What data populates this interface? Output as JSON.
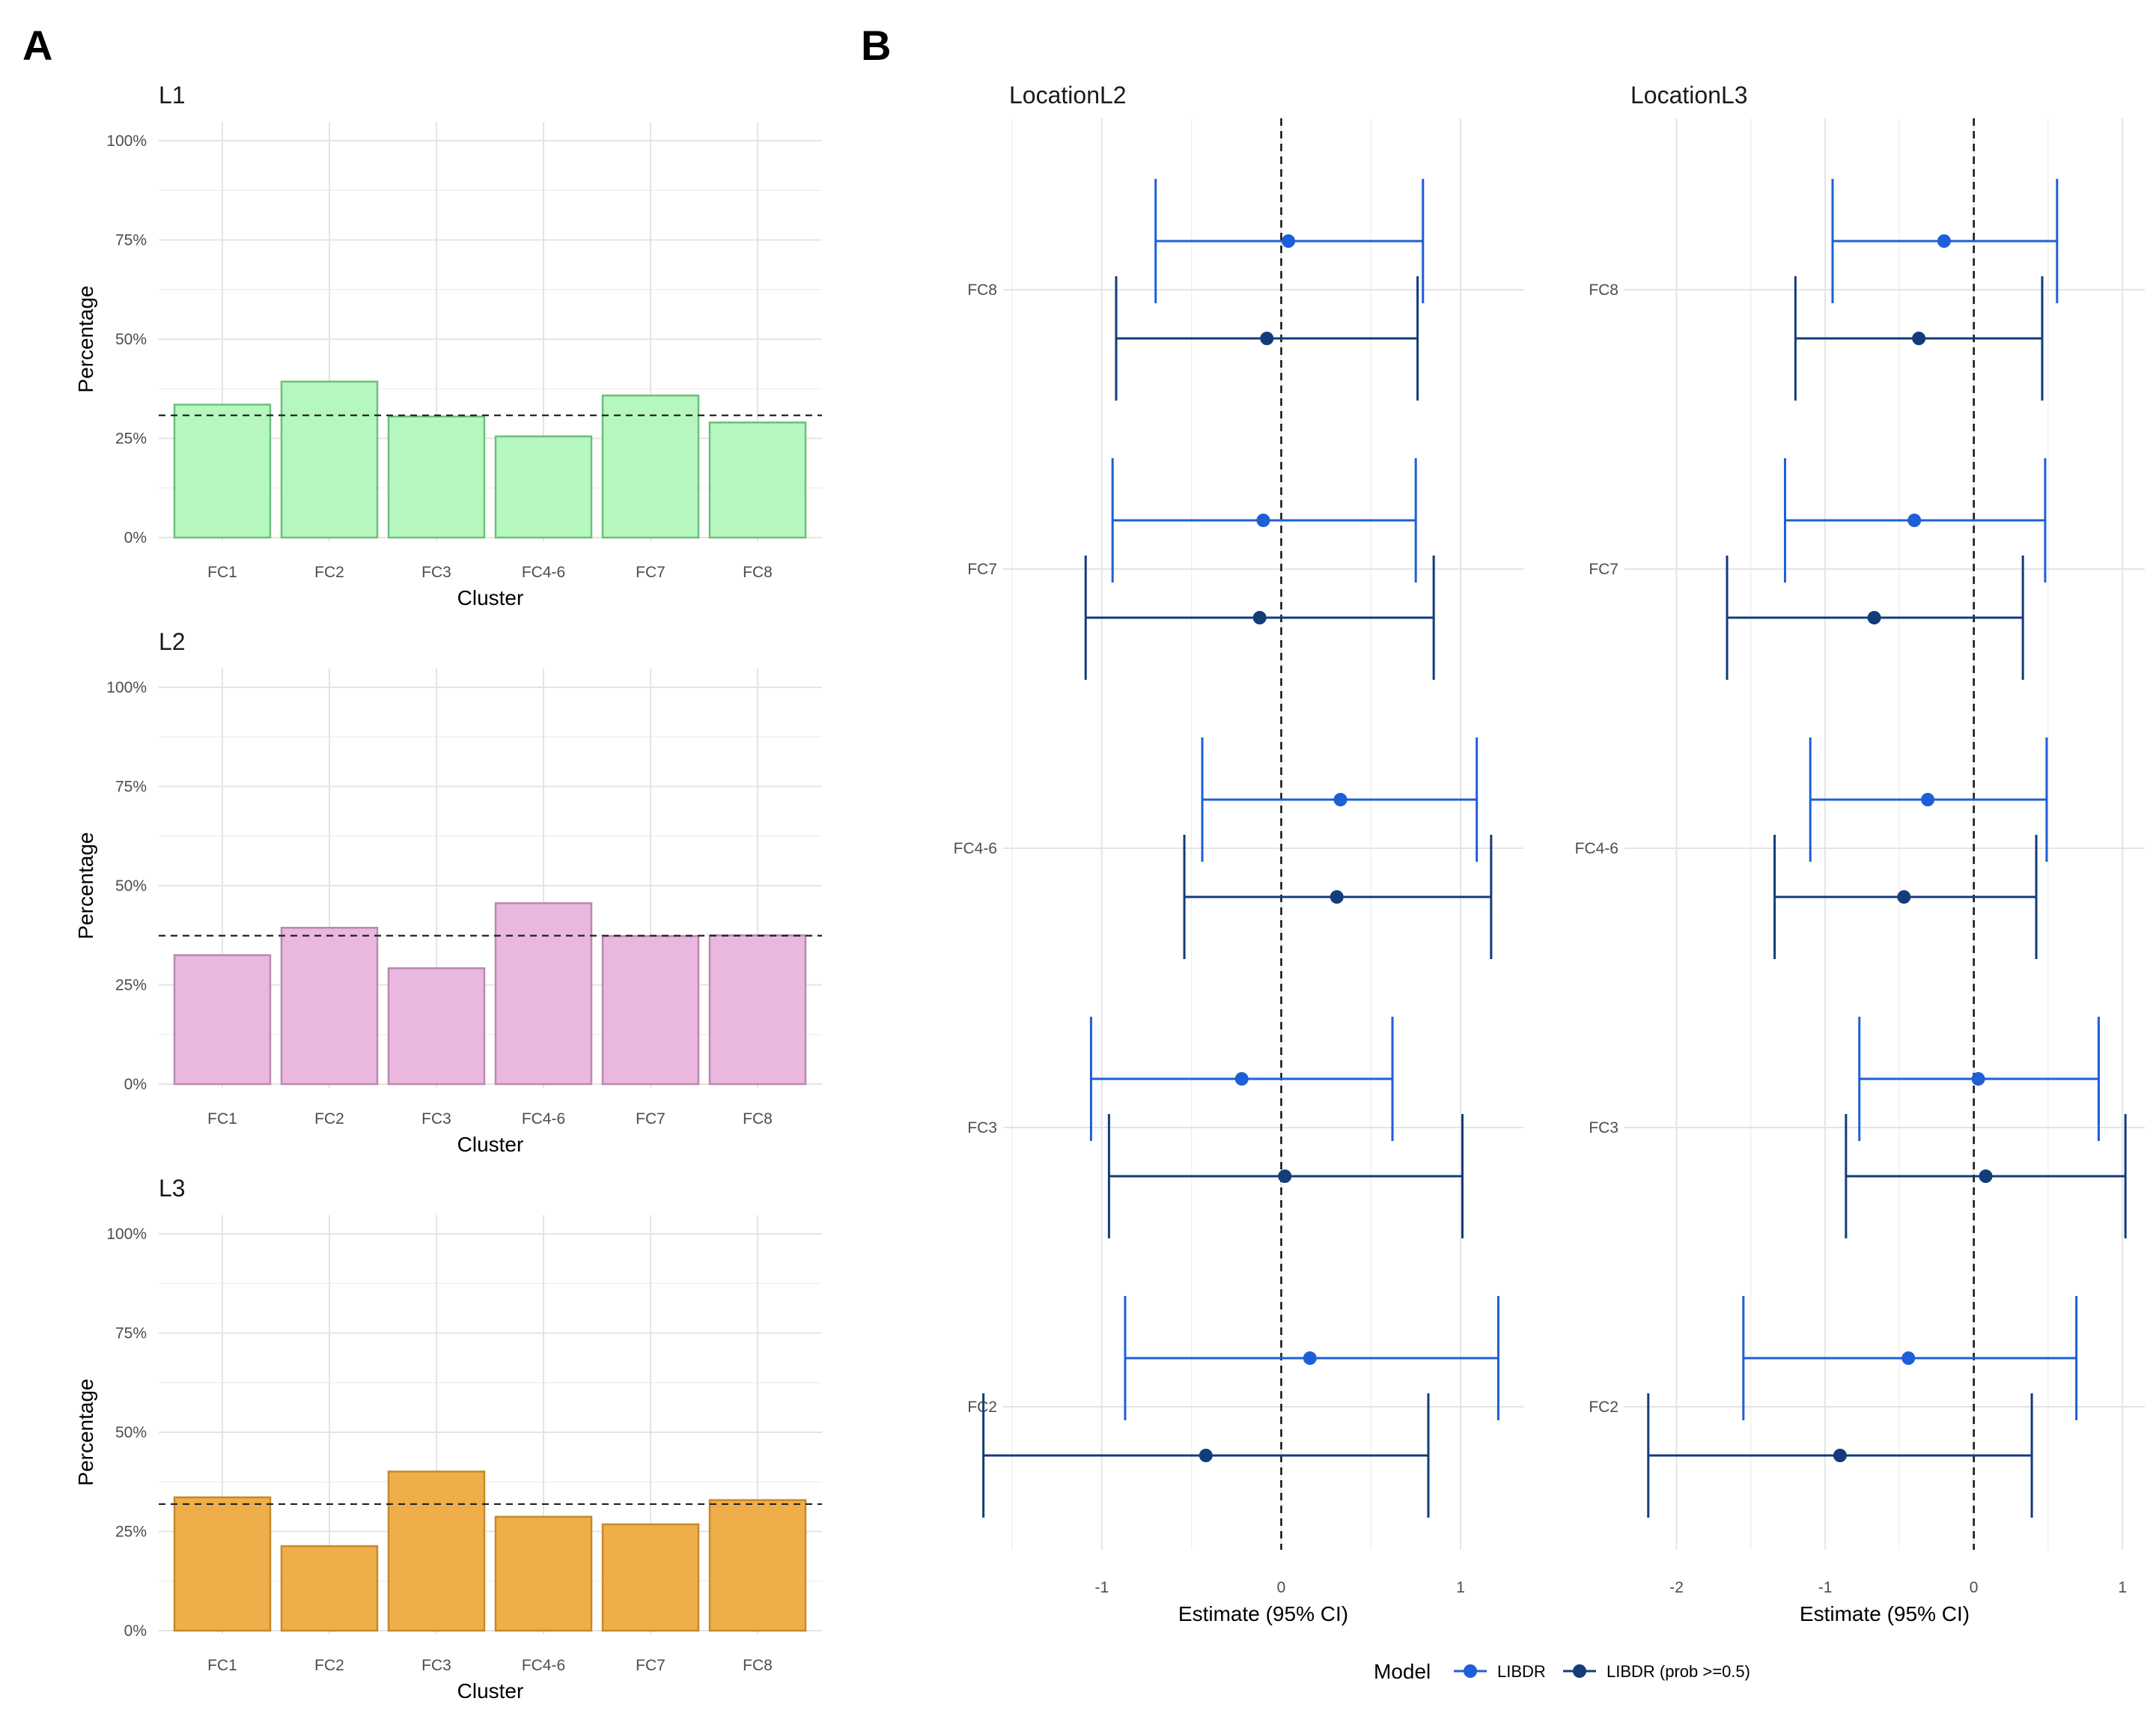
{
  "panel_labels": {
    "a": "A",
    "b": "B"
  },
  "chart_data": [
    {
      "type": "bar",
      "panel": "A",
      "title": "L1",
      "categories": [
        "FC1",
        "FC2",
        "FC3",
        "FC4-6",
        "FC7",
        "FC8"
      ],
      "values": [
        33.5,
        39.3,
        30.5,
        25.5,
        35.8,
        29.0
      ],
      "reference_line": 30.8,
      "xlabel": "Cluster",
      "ylabel": "Percentage",
      "ylim": [
        0,
        100
      ],
      "yticks": [
        "0%",
        "25%",
        "50%",
        "75%",
        "100%"
      ],
      "fill_color": "#b5f7be",
      "stroke_color": "#6cc07a"
    },
    {
      "type": "bar",
      "panel": "A",
      "title": "L2",
      "categories": [
        "FC1",
        "FC2",
        "FC3",
        "FC4-6",
        "FC7",
        "FC8"
      ],
      "values": [
        32.5,
        39.4,
        29.2,
        45.6,
        37.3,
        37.5
      ],
      "reference_line": 37.4,
      "xlabel": "Cluster",
      "ylabel": "Percentage",
      "ylim": [
        0,
        100
      ],
      "yticks": [
        "0%",
        "25%",
        "50%",
        "75%",
        "100%"
      ],
      "fill_color": "#eab7de",
      "stroke_color": "#b88aae"
    },
    {
      "type": "bar",
      "panel": "A",
      "title": "L3",
      "categories": [
        "FC1",
        "FC2",
        "FC3",
        "FC4-6",
        "FC7",
        "FC8"
      ],
      "values": [
        33.6,
        21.3,
        40.1,
        28.7,
        26.8,
        32.9
      ],
      "reference_line": 31.9,
      "xlabel": "Cluster",
      "ylabel": "Percentage",
      "ylim": [
        0,
        100
      ],
      "yticks": [
        "0%",
        "25%",
        "50%",
        "75%",
        "100%"
      ],
      "fill_color": "#f0ae4b",
      "stroke_color": "#c48a2a"
    },
    {
      "type": "scatter",
      "subtype": "forest",
      "panel": "B",
      "title": "LocationL2",
      "xlabel": "Estimate (95% CI)",
      "xlim": [
        -1.55,
        1.35
      ],
      "xticks": [
        "-1",
        "0",
        "1"
      ],
      "xtick_values": [
        -1,
        0,
        1
      ],
      "categories": [
        "FC8",
        "FC7",
        "FC4-6",
        "FC3",
        "FC2"
      ],
      "reference_line": 0,
      "series": [
        {
          "name": "LIBDR",
          "color": "#1d5fd6",
          "estimate": [
            0.04,
            -0.1,
            0.33,
            -0.22,
            0.16
          ],
          "lower": [
            -0.7,
            -0.94,
            -0.44,
            -1.06,
            -0.87
          ],
          "upper": [
            0.79,
            0.75,
            1.09,
            0.62,
            1.21
          ]
        },
        {
          "name": "LIBDR (prob >=0.5)",
          "color": "#123c7a",
          "estimate": [
            -0.08,
            -0.12,
            0.31,
            0.02,
            -0.42
          ],
          "lower": [
            -0.92,
            -1.09,
            -0.54,
            -0.96,
            -1.66
          ],
          "upper": [
            0.76,
            0.85,
            1.17,
            1.01,
            0.82
          ]
        }
      ]
    },
    {
      "type": "scatter",
      "subtype": "forest",
      "panel": "B",
      "title": "LocationL3",
      "xlabel": "Estimate (95% CI)",
      "xlim": [
        -2.35,
        1.15
      ],
      "xticks": [
        "-2",
        "-1",
        "0",
        "1"
      ],
      "xtick_values": [
        -2,
        -1,
        0,
        1
      ],
      "categories": [
        "FC8",
        "FC7",
        "FC4-6",
        "FC3",
        "FC2"
      ],
      "reference_line": 0,
      "series": [
        {
          "name": "LIBDR",
          "color": "#1d5fd6",
          "estimate": [
            -0.2,
            -0.4,
            -0.31,
            0.03,
            -0.44
          ],
          "lower": [
            -0.95,
            -1.27,
            -1.1,
            -0.77,
            -1.55
          ],
          "upper": [
            0.56,
            0.48,
            0.49,
            0.84,
            0.69
          ]
        },
        {
          "name": "LIBDR (prob >=0.5)",
          "color": "#123c7a",
          "estimate": [
            -0.37,
            -0.67,
            -0.47,
            0.08,
            -0.9
          ],
          "lower": [
            -1.2,
            -1.66,
            -1.34,
            -0.86,
            -2.19
          ],
          "upper": [
            0.46,
            0.33,
            0.42,
            1.02,
            0.39
          ]
        }
      ]
    }
  ],
  "legend": {
    "title": "Model",
    "entries": [
      {
        "label": "LIBDR",
        "color": "#1d5fd6"
      },
      {
        "label": "LIBDR (prob >=0.5)",
        "color": "#123c7a"
      }
    ]
  }
}
